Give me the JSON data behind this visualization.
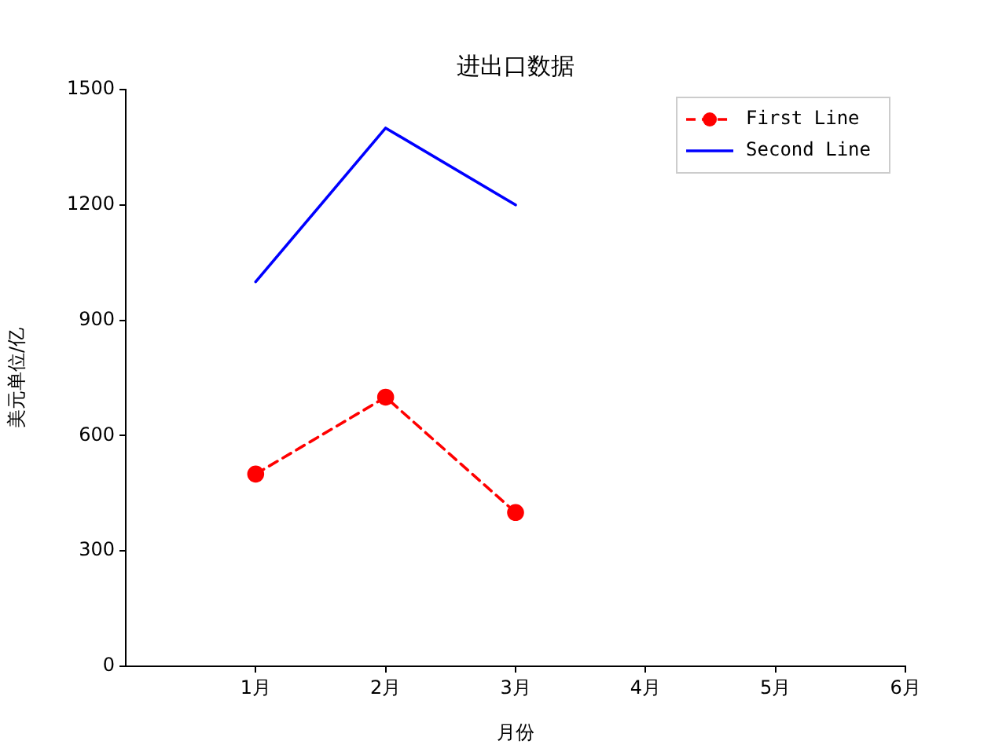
{
  "chart_data": {
    "type": "line",
    "title": "进出口数据",
    "xlabel": "月份",
    "ylabel": "美元单位/亿",
    "x": [
      1,
      2,
      3
    ],
    "xlim": [
      0,
      6
    ],
    "xticks": [
      {
        "value": 1,
        "label": "1月"
      },
      {
        "value": 2,
        "label": "2月"
      },
      {
        "value": 3,
        "label": "3月"
      },
      {
        "value": 4,
        "label": "4月"
      },
      {
        "value": 5,
        "label": "5月"
      },
      {
        "value": 6,
        "label": "6月"
      }
    ],
    "ylim": [
      0,
      1500
    ],
    "yticks": [
      0,
      300,
      600,
      900,
      1200,
      1500
    ],
    "grid": false,
    "legend": "top right",
    "series": [
      {
        "name": "First Line",
        "color": "#ff0000",
        "values": [
          500,
          700,
          400
        ],
        "marker": "circle",
        "line_style": "dashed"
      },
      {
        "name": "Second Line",
        "color": "#0000ff",
        "values": [
          1000,
          1400,
          1200
        ],
        "marker": "none",
        "line_style": "solid"
      }
    ]
  }
}
